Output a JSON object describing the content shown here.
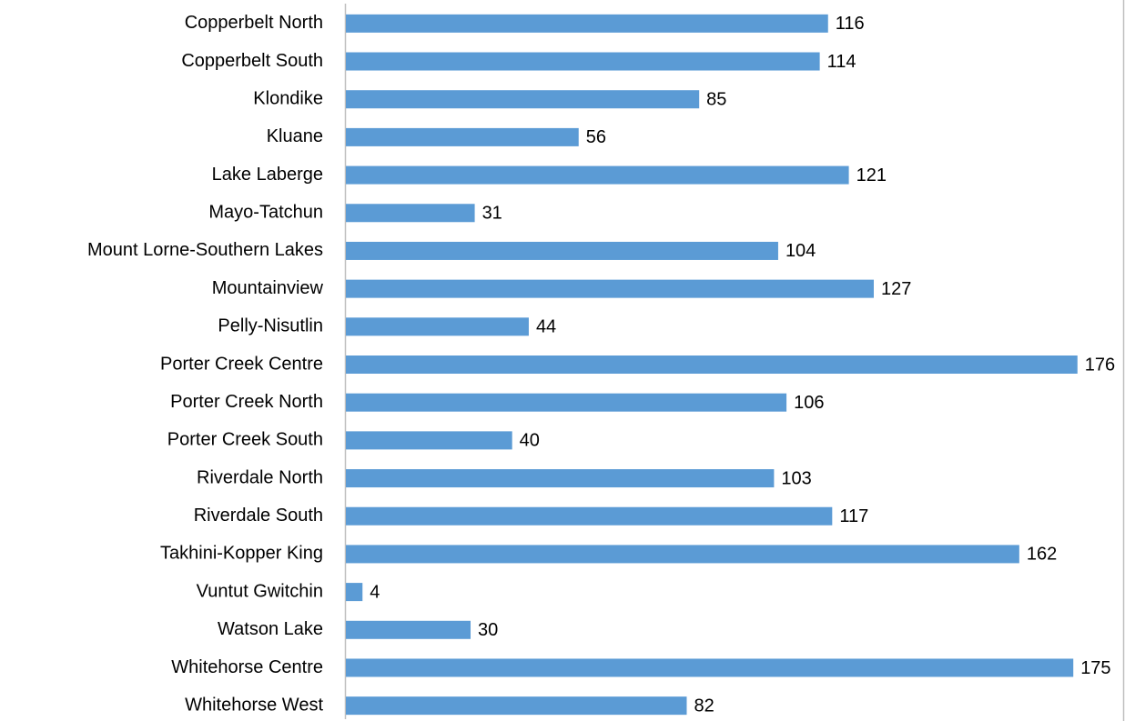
{
  "chart_data": {
    "type": "bar",
    "orientation": "horizontal",
    "categories": [
      "Copperbelt North",
      "Copperbelt South",
      "Klondike",
      "Kluane",
      "Lake Laberge",
      "Mayo-Tatchun",
      "Mount Lorne-Southern Lakes",
      "Mountainview",
      "Pelly-Nisutlin",
      "Porter Creek Centre",
      "Porter Creek North",
      "Porter Creek South",
      "Riverdale North",
      "Riverdale South",
      "Takhini-Kopper King",
      "Vuntut Gwitchin",
      "Watson Lake",
      "Whitehorse Centre",
      "Whitehorse West"
    ],
    "values": [
      116,
      114,
      85,
      56,
      121,
      31,
      104,
      127,
      44,
      176,
      106,
      40,
      103,
      117,
      162,
      4,
      30,
      175,
      82
    ],
    "color": "#5b9bd5",
    "xlim": [
      0,
      187
    ]
  }
}
